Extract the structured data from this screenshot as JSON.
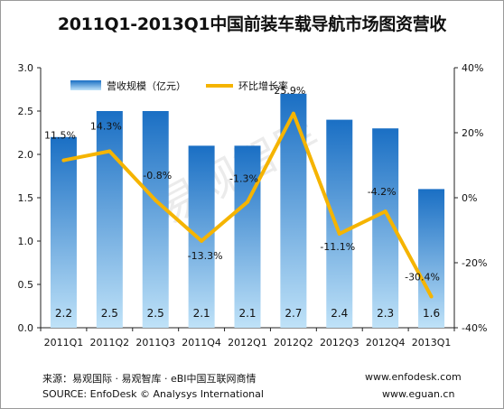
{
  "chart_data": {
    "type": "bar",
    "title": "2011Q1-2013Q1中国前装车载导航市场图资营收",
    "categories": [
      "2011Q1",
      "2011Q2",
      "2011Q3",
      "2011Q4",
      "2012Q1",
      "2012Q2",
      "2012Q3",
      "2012Q4",
      "2013Q1"
    ],
    "series": [
      {
        "name": "营收规模（亿元）",
        "type": "bar",
        "axis": "left",
        "values": [
          2.2,
          2.5,
          2.5,
          2.1,
          2.1,
          2.7,
          2.4,
          2.3,
          1.6
        ],
        "value_labels": [
          "2.2",
          "2.5",
          "2.5",
          "2.1",
          "2.1",
          "2.7",
          "2.4",
          "2.3",
          "1.6"
        ]
      },
      {
        "name": "环比增长率",
        "type": "line",
        "axis": "right",
        "values": [
          11.5,
          14.3,
          -0.8,
          -13.3,
          -1.3,
          25.9,
          -11.1,
          -4.2,
          -30.4
        ],
        "value_labels": [
          "11.5%",
          "14.3%",
          "-0.8%",
          "-13.3%",
          "-1.3%",
          "25.9%",
          "-11.1%",
          "-4.2%",
          "-30.4%"
        ]
      }
    ],
    "y_left": {
      "lim": [
        0,
        3.0
      ],
      "ticks": [
        "0.0",
        "0.5",
        "1.0",
        "1.5",
        "2.0",
        "2.5",
        "3.0"
      ]
    },
    "y_right": {
      "lim": [
        -40,
        40
      ],
      "ticks": [
        "-40%",
        "-20%",
        "0%",
        "20%",
        "40%"
      ]
    },
    "grid": false,
    "legend": "top-left",
    "colors": {
      "bar_top": "#1a6fc4",
      "bar_bottom": "#bfe2f8",
      "line": "#f5b400",
      "axis": "#222222"
    }
  },
  "footer": {
    "source_cn": "来源：易观国际 · 易观智库 · eBI中国互联网商情",
    "source_en": "SOURCE: EnfoDesk © Analysys International",
    "url1": "www.enfodesk.com",
    "url2": "www.eguan.cn"
  },
  "watermark": "易观智库"
}
